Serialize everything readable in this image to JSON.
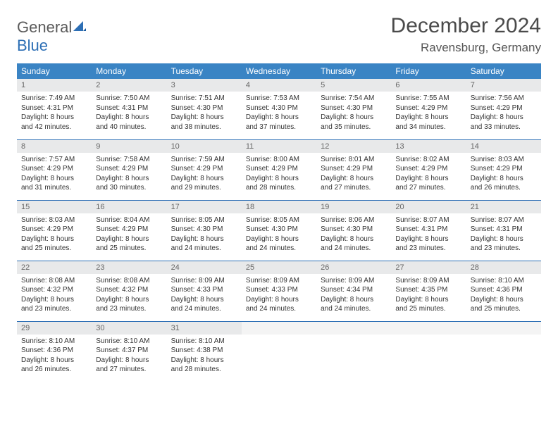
{
  "logo": {
    "text_general": "General",
    "text_blue": "Blue"
  },
  "title": "December 2024",
  "location": "Ravensburg, Germany",
  "header_bg": "#3a84c4",
  "header_text_color": "#ffffff",
  "daynum_bg": "#e8e9ea",
  "row_border_color": "#2d6fb5",
  "weekdays": [
    "Sunday",
    "Monday",
    "Tuesday",
    "Wednesday",
    "Thursday",
    "Friday",
    "Saturday"
  ],
  "weeks": [
    [
      {
        "n": "1",
        "sr": "Sunrise: 7:49 AM",
        "ss": "Sunset: 4:31 PM",
        "dl": "Daylight: 8 hours and 42 minutes."
      },
      {
        "n": "2",
        "sr": "Sunrise: 7:50 AM",
        "ss": "Sunset: 4:31 PM",
        "dl": "Daylight: 8 hours and 40 minutes."
      },
      {
        "n": "3",
        "sr": "Sunrise: 7:51 AM",
        "ss": "Sunset: 4:30 PM",
        "dl": "Daylight: 8 hours and 38 minutes."
      },
      {
        "n": "4",
        "sr": "Sunrise: 7:53 AM",
        "ss": "Sunset: 4:30 PM",
        "dl": "Daylight: 8 hours and 37 minutes."
      },
      {
        "n": "5",
        "sr": "Sunrise: 7:54 AM",
        "ss": "Sunset: 4:30 PM",
        "dl": "Daylight: 8 hours and 35 minutes."
      },
      {
        "n": "6",
        "sr": "Sunrise: 7:55 AM",
        "ss": "Sunset: 4:29 PM",
        "dl": "Daylight: 8 hours and 34 minutes."
      },
      {
        "n": "7",
        "sr": "Sunrise: 7:56 AM",
        "ss": "Sunset: 4:29 PM",
        "dl": "Daylight: 8 hours and 33 minutes."
      }
    ],
    [
      {
        "n": "8",
        "sr": "Sunrise: 7:57 AM",
        "ss": "Sunset: 4:29 PM",
        "dl": "Daylight: 8 hours and 31 minutes."
      },
      {
        "n": "9",
        "sr": "Sunrise: 7:58 AM",
        "ss": "Sunset: 4:29 PM",
        "dl": "Daylight: 8 hours and 30 minutes."
      },
      {
        "n": "10",
        "sr": "Sunrise: 7:59 AM",
        "ss": "Sunset: 4:29 PM",
        "dl": "Daylight: 8 hours and 29 minutes."
      },
      {
        "n": "11",
        "sr": "Sunrise: 8:00 AM",
        "ss": "Sunset: 4:29 PM",
        "dl": "Daylight: 8 hours and 28 minutes."
      },
      {
        "n": "12",
        "sr": "Sunrise: 8:01 AM",
        "ss": "Sunset: 4:29 PM",
        "dl": "Daylight: 8 hours and 27 minutes."
      },
      {
        "n": "13",
        "sr": "Sunrise: 8:02 AM",
        "ss": "Sunset: 4:29 PM",
        "dl": "Daylight: 8 hours and 27 minutes."
      },
      {
        "n": "14",
        "sr": "Sunrise: 8:03 AM",
        "ss": "Sunset: 4:29 PM",
        "dl": "Daylight: 8 hours and 26 minutes."
      }
    ],
    [
      {
        "n": "15",
        "sr": "Sunrise: 8:03 AM",
        "ss": "Sunset: 4:29 PM",
        "dl": "Daylight: 8 hours and 25 minutes."
      },
      {
        "n": "16",
        "sr": "Sunrise: 8:04 AM",
        "ss": "Sunset: 4:29 PM",
        "dl": "Daylight: 8 hours and 25 minutes."
      },
      {
        "n": "17",
        "sr": "Sunrise: 8:05 AM",
        "ss": "Sunset: 4:30 PM",
        "dl": "Daylight: 8 hours and 24 minutes."
      },
      {
        "n": "18",
        "sr": "Sunrise: 8:05 AM",
        "ss": "Sunset: 4:30 PM",
        "dl": "Daylight: 8 hours and 24 minutes."
      },
      {
        "n": "19",
        "sr": "Sunrise: 8:06 AM",
        "ss": "Sunset: 4:30 PM",
        "dl": "Daylight: 8 hours and 24 minutes."
      },
      {
        "n": "20",
        "sr": "Sunrise: 8:07 AM",
        "ss": "Sunset: 4:31 PM",
        "dl": "Daylight: 8 hours and 23 minutes."
      },
      {
        "n": "21",
        "sr": "Sunrise: 8:07 AM",
        "ss": "Sunset: 4:31 PM",
        "dl": "Daylight: 8 hours and 23 minutes."
      }
    ],
    [
      {
        "n": "22",
        "sr": "Sunrise: 8:08 AM",
        "ss": "Sunset: 4:32 PM",
        "dl": "Daylight: 8 hours and 23 minutes."
      },
      {
        "n": "23",
        "sr": "Sunrise: 8:08 AM",
        "ss": "Sunset: 4:32 PM",
        "dl": "Daylight: 8 hours and 23 minutes."
      },
      {
        "n": "24",
        "sr": "Sunrise: 8:09 AM",
        "ss": "Sunset: 4:33 PM",
        "dl": "Daylight: 8 hours and 24 minutes."
      },
      {
        "n": "25",
        "sr": "Sunrise: 8:09 AM",
        "ss": "Sunset: 4:33 PM",
        "dl": "Daylight: 8 hours and 24 minutes."
      },
      {
        "n": "26",
        "sr": "Sunrise: 8:09 AM",
        "ss": "Sunset: 4:34 PM",
        "dl": "Daylight: 8 hours and 24 minutes."
      },
      {
        "n": "27",
        "sr": "Sunrise: 8:09 AM",
        "ss": "Sunset: 4:35 PM",
        "dl": "Daylight: 8 hours and 25 minutes."
      },
      {
        "n": "28",
        "sr": "Sunrise: 8:10 AM",
        "ss": "Sunset: 4:36 PM",
        "dl": "Daylight: 8 hours and 25 minutes."
      }
    ],
    [
      {
        "n": "29",
        "sr": "Sunrise: 8:10 AM",
        "ss": "Sunset: 4:36 PM",
        "dl": "Daylight: 8 hours and 26 minutes."
      },
      {
        "n": "30",
        "sr": "Sunrise: 8:10 AM",
        "ss": "Sunset: 4:37 PM",
        "dl": "Daylight: 8 hours and 27 minutes."
      },
      {
        "n": "31",
        "sr": "Sunrise: 8:10 AM",
        "ss": "Sunset: 4:38 PM",
        "dl": "Daylight: 8 hours and 28 minutes."
      },
      {
        "n": "",
        "sr": "",
        "ss": "",
        "dl": ""
      },
      {
        "n": "",
        "sr": "",
        "ss": "",
        "dl": ""
      },
      {
        "n": "",
        "sr": "",
        "ss": "",
        "dl": ""
      },
      {
        "n": "",
        "sr": "",
        "ss": "",
        "dl": ""
      }
    ]
  ]
}
